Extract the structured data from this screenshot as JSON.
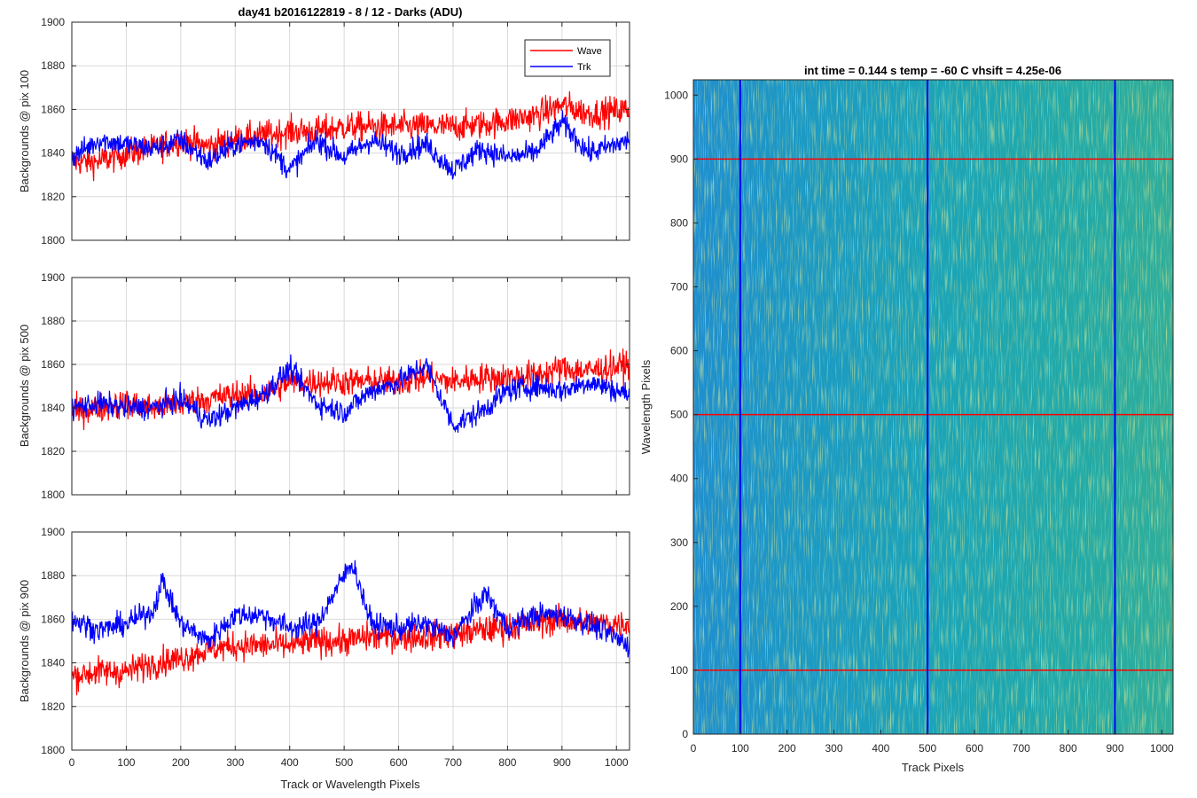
{
  "figure": {
    "title": "day41 b2016122819 - 8 / 12 - Darks (ADU)",
    "right_title": "int time = 0.144 s   temp = -60 C   vhsift = 4.25e-06",
    "bottom_xlabel": "Track or Wavelength Pixels"
  },
  "colors": {
    "wave": "#ff0000",
    "trk": "#0000ff",
    "grid": "#d9d9d9"
  },
  "chart_data": [
    {
      "type": "line",
      "ylabel": "Backgrounds @ pix 100",
      "xlim": [
        0,
        1024
      ],
      "ylim": [
        1800,
        1900
      ],
      "xticks": [
        0,
        100,
        200,
        300,
        400,
        500,
        600,
        700,
        800,
        900,
        1000
      ],
      "yticks": [
        1800,
        1820,
        1840,
        1860,
        1880,
        1900
      ],
      "grid": true,
      "legend": {
        "placement": "top-right",
        "entries": [
          "Wave",
          "Trk"
        ]
      },
      "series": [
        {
          "name": "Wave",
          "color": "#ff0000",
          "x": [
            0,
            50,
            100,
            150,
            200,
            250,
            300,
            350,
            400,
            450,
            500,
            550,
            600,
            650,
            700,
            750,
            800,
            850,
            900,
            950,
            1024
          ],
          "y": [
            1836,
            1836,
            1840,
            1842,
            1846,
            1843,
            1846,
            1848,
            1850,
            1850,
            1852,
            1852,
            1852,
            1852,
            1852,
            1853,
            1855,
            1857,
            1862,
            1858,
            1860
          ]
        },
        {
          "name": "Trk",
          "color": "#0000ff",
          "x": [
            0,
            50,
            100,
            150,
            200,
            250,
            300,
            350,
            400,
            450,
            500,
            550,
            600,
            650,
            700,
            750,
            800,
            850,
            900,
            950,
            1024
          ],
          "y": [
            1838,
            1846,
            1844,
            1842,
            1846,
            1836,
            1844,
            1846,
            1832,
            1846,
            1838,
            1846,
            1840,
            1844,
            1832,
            1842,
            1838,
            1840,
            1854,
            1840,
            1846
          ]
        }
      ]
    },
    {
      "type": "line",
      "ylabel": "Backgrounds @ pix 500",
      "xlim": [
        0,
        1024
      ],
      "ylim": [
        1800,
        1900
      ],
      "xticks": [
        0,
        100,
        200,
        300,
        400,
        500,
        600,
        700,
        800,
        900,
        1000
      ],
      "yticks": [
        1800,
        1820,
        1840,
        1860,
        1880,
        1900
      ],
      "grid": true,
      "series": [
        {
          "name": "Wave",
          "color": "#ff0000",
          "x": [
            0,
            50,
            100,
            150,
            200,
            250,
            300,
            350,
            400,
            450,
            500,
            550,
            600,
            650,
            700,
            750,
            800,
            850,
            900,
            950,
            1024
          ],
          "y": [
            1838,
            1840,
            1842,
            1840,
            1842,
            1844,
            1846,
            1846,
            1852,
            1852,
            1852,
            1852,
            1852,
            1854,
            1852,
            1854,
            1854,
            1855,
            1858,
            1857,
            1860
          ]
        },
        {
          "name": "Trk",
          "color": "#0000ff",
          "x": [
            0,
            50,
            100,
            150,
            200,
            250,
            300,
            350,
            400,
            450,
            500,
            550,
            600,
            650,
            700,
            750,
            800,
            850,
            900,
            950,
            1024
          ],
          "y": [
            1840,
            1842,
            1840,
            1840,
            1844,
            1834,
            1840,
            1846,
            1858,
            1842,
            1838,
            1848,
            1852,
            1860,
            1832,
            1838,
            1848,
            1850,
            1848,
            1852,
            1846
          ]
        }
      ]
    },
    {
      "type": "line",
      "ylabel": "Backgrounds @ pix 900",
      "xlabel": "Track or Wavelength Pixels",
      "xlim": [
        0,
        1024
      ],
      "ylim": [
        1800,
        1900
      ],
      "xticks": [
        0,
        100,
        200,
        300,
        400,
        500,
        600,
        700,
        800,
        900,
        1000
      ],
      "yticks": [
        1800,
        1820,
        1840,
        1860,
        1880,
        1900
      ],
      "grid": true,
      "series": [
        {
          "name": "Wave",
          "color": "#ff0000",
          "x": [
            0,
            50,
            100,
            150,
            200,
            250,
            300,
            350,
            400,
            450,
            500,
            550,
            600,
            650,
            700,
            750,
            800,
            850,
            900,
            950,
            1024
          ],
          "y": [
            1834,
            1836,
            1836,
            1840,
            1842,
            1846,
            1848,
            1848,
            1848,
            1850,
            1850,
            1852,
            1852,
            1852,
            1853,
            1855,
            1856,
            1858,
            1860,
            1858,
            1858
          ]
        },
        {
          "name": "Trk",
          "color": "#0000ff",
          "x": [
            0,
            50,
            100,
            150,
            165,
            200,
            250,
            300,
            350,
            400,
            450,
            500,
            515,
            550,
            600,
            650,
            700,
            760,
            800,
            850,
            900,
            950,
            1024
          ],
          "y": [
            1860,
            1855,
            1858,
            1864,
            1878,
            1858,
            1850,
            1862,
            1862,
            1856,
            1858,
            1880,
            1886,
            1858,
            1856,
            1858,
            1852,
            1872,
            1856,
            1862,
            1862,
            1858,
            1848
          ]
        }
      ]
    },
    {
      "type": "heatmap",
      "title": "int time = 0.144 s   temp = -60 C   vhsift = 4.25e-06",
      "xlabel": "Track Pixels",
      "ylabel": "Wavelength Pixels",
      "xlim": [
        0,
        1024
      ],
      "ylim": [
        0,
        1024
      ],
      "xticks": [
        0,
        100,
        200,
        300,
        400,
        500,
        600,
        700,
        800,
        900,
        1000
      ],
      "yticks": [
        0,
        100,
        200,
        300,
        400,
        500,
        600,
        700,
        800,
        900,
        1000
      ],
      "colormap": "parula",
      "vertical_lines": {
        "color": "#0000ff",
        "x": [
          100,
          500,
          900
        ]
      },
      "horizontal_lines": {
        "color": "#ff0000",
        "y": [
          100,
          500,
          900
        ]
      }
    }
  ]
}
